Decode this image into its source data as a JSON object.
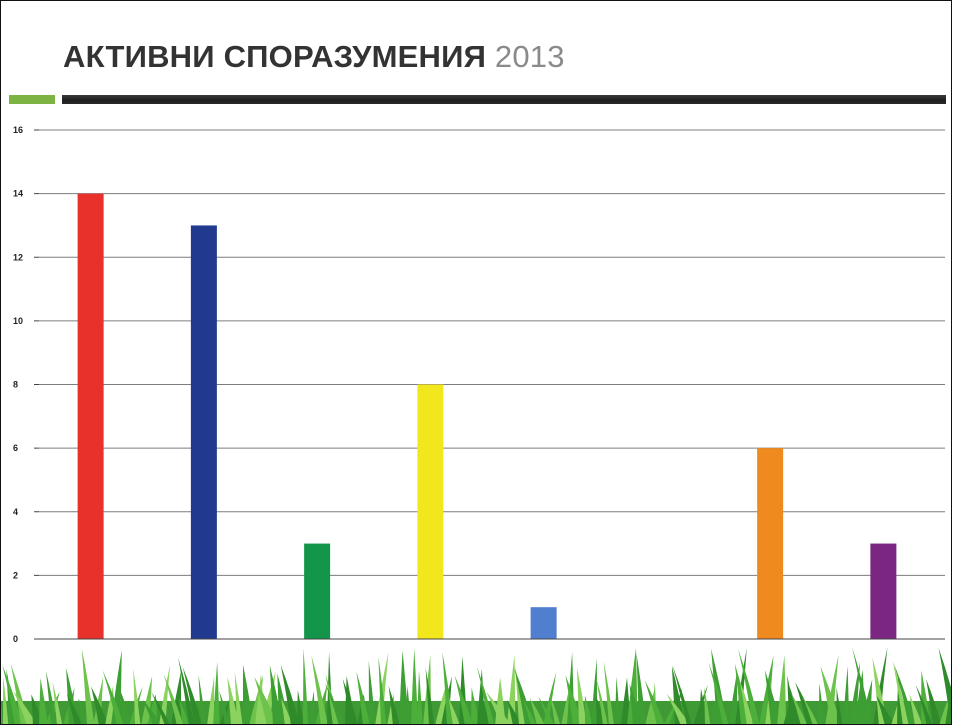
{
  "slide": {
    "title_main": "АКТИВНИ СПОРАЗУМЕНИЯ",
    "title_year": "2013"
  },
  "colors": {
    "title_text": "#333333",
    "title_year": "#8a8a8a",
    "accent_green": "#7cb342",
    "accent_dark": "#2a2a2a",
    "grass": "#4caf3a"
  },
  "chart_data": {
    "type": "bar",
    "title": "",
    "xlabel": "",
    "ylabel": "",
    "ylim": [
      0,
      16
    ],
    "yticks": [
      0,
      2,
      4,
      6,
      8,
      10,
      12,
      14,
      16
    ],
    "grid": true,
    "legend": "none",
    "values": [
      14,
      13,
      3,
      8,
      1,
      0,
      6,
      3
    ],
    "bar_colors": [
      "#e8312a",
      "#213a8f",
      "#14964a",
      "#f2e61c",
      "#4f7fce",
      "#cccccc",
      "#ee8a1e",
      "#7a2682"
    ]
  }
}
